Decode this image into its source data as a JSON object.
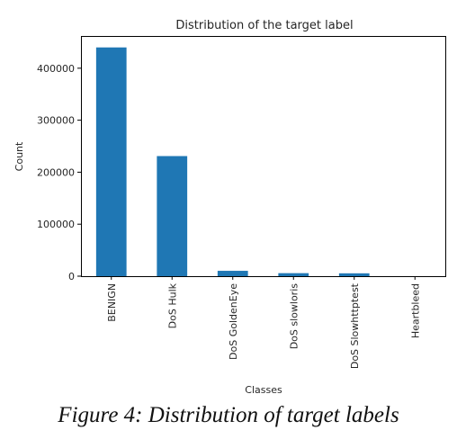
{
  "caption": "Figure 4: Distribution of target labels",
  "chart_data": {
    "type": "bar",
    "title": "Distribution of the target label",
    "xlabel": "Classes",
    "ylabel": "Count",
    "categories": [
      "BENIGN",
      "DoS Hulk",
      "DoS GoldenEye",
      "DoS slowloris",
      "DoS Slowhttptest",
      "Heartbleed"
    ],
    "values": [
      440000,
      231000,
      10300,
      5800,
      5500,
      11
    ],
    "ylim": [
      0,
      462000
    ],
    "yticks": [
      0,
      100000,
      200000,
      300000,
      400000
    ],
    "grid": false,
    "legend": "none",
    "bar_color": "#1f77b4"
  }
}
